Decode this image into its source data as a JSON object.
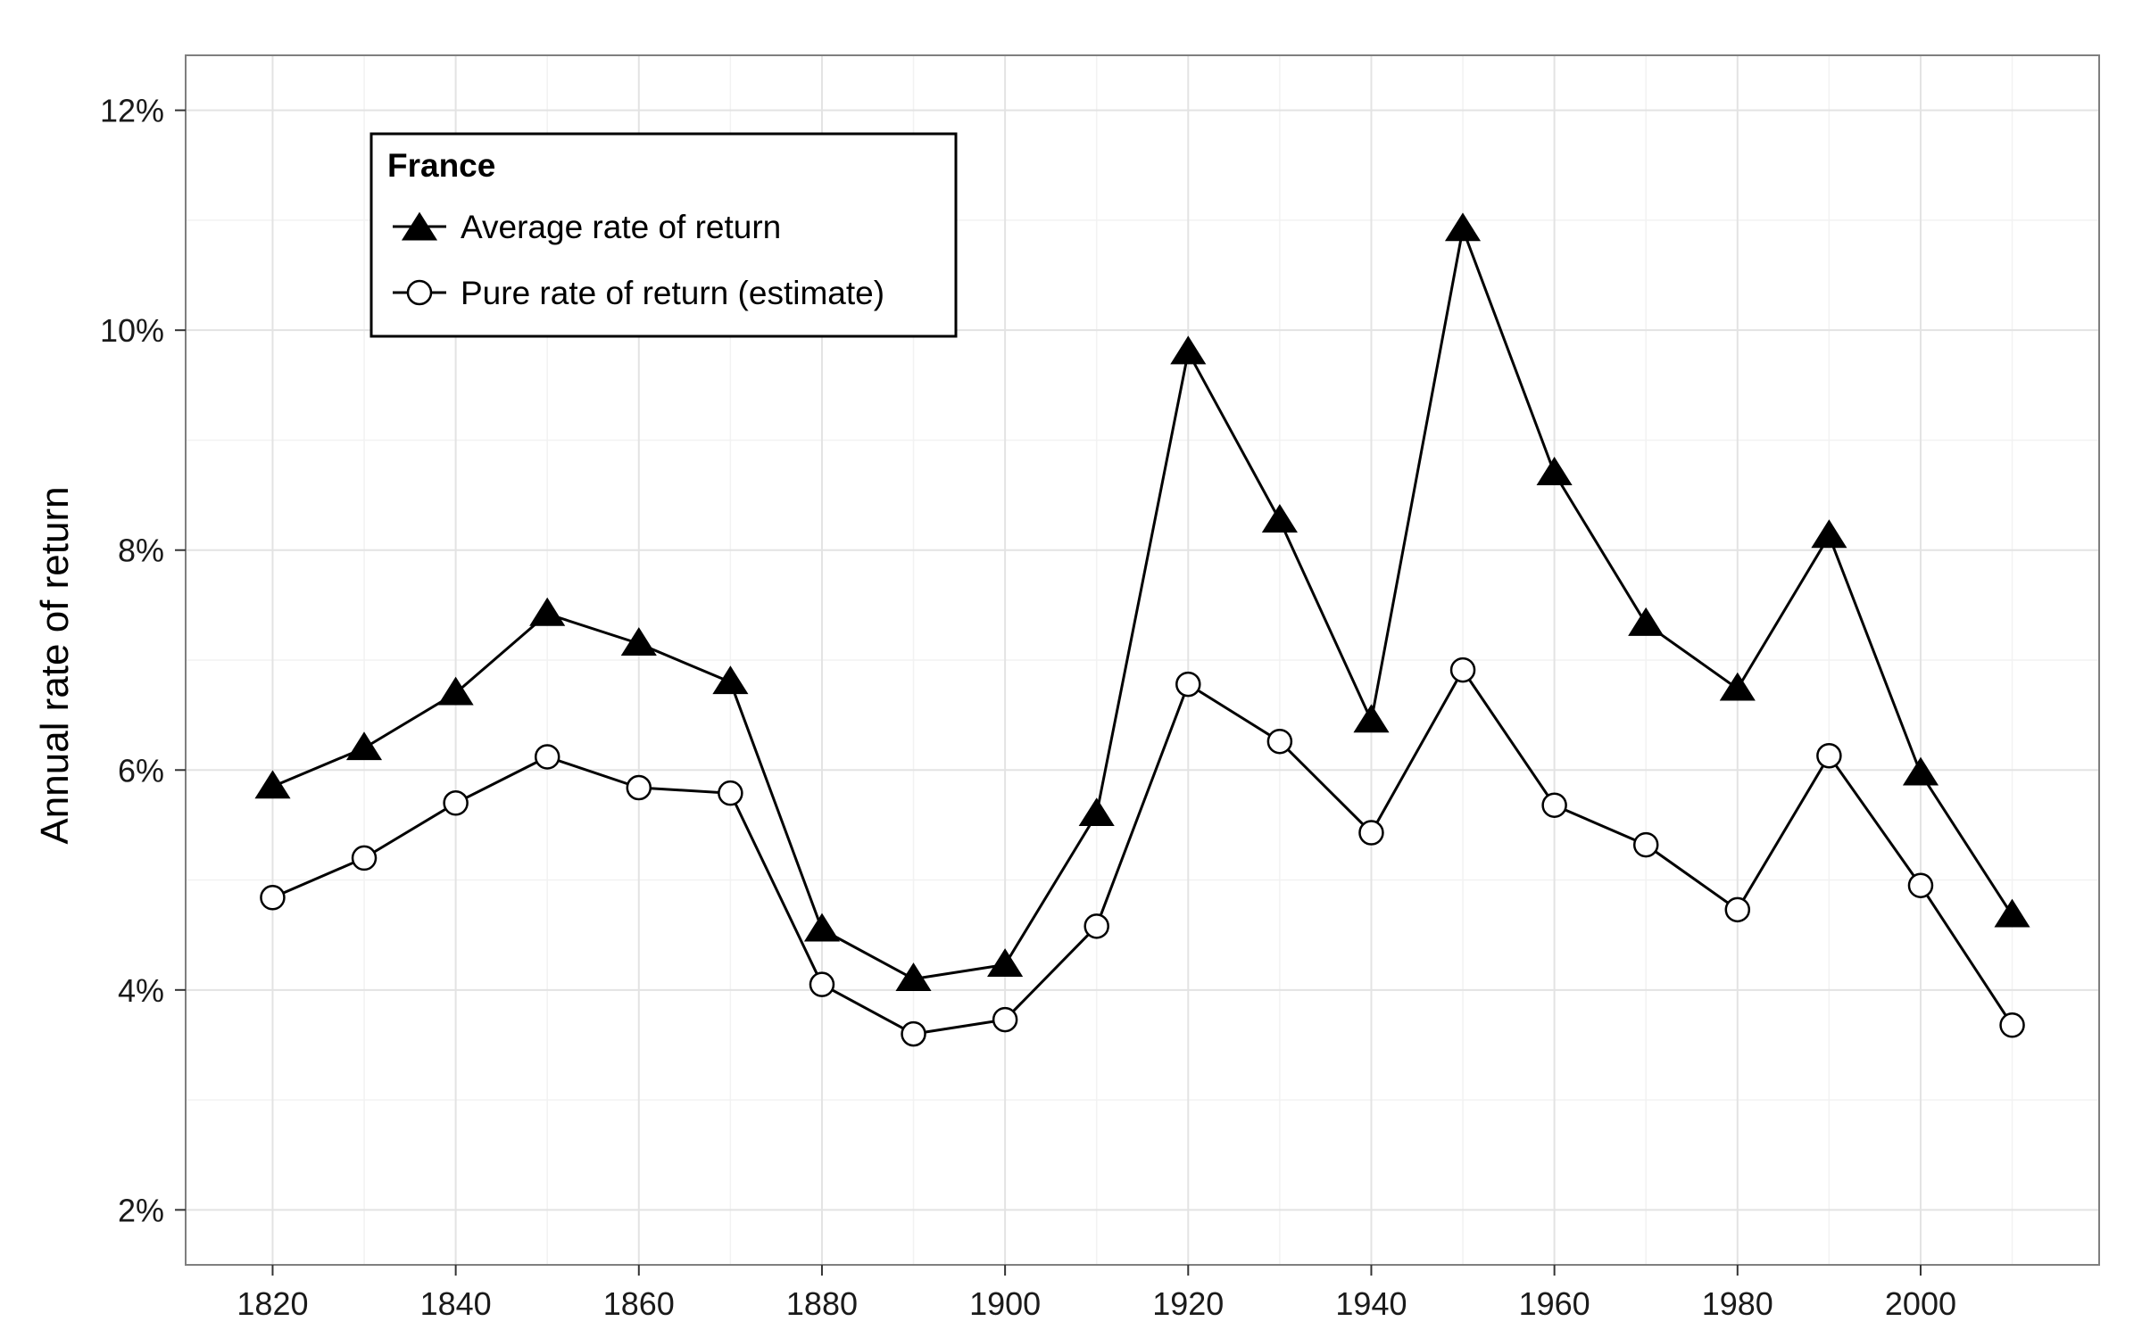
{
  "chart_data": {
    "type": "line",
    "title": "",
    "xlabel": "",
    "ylabel": "Annual rate of return",
    "x": [
      1820,
      1830,
      1840,
      1850,
      1860,
      1870,
      1880,
      1890,
      1900,
      1910,
      1920,
      1930,
      1940,
      1950,
      1960,
      1970,
      1980,
      1990,
      2000,
      2010
    ],
    "xlim": [
      1810.5,
      2019.5
    ],
    "ylim": [
      1.5,
      12.5
    ],
    "x_ticks": [
      1820,
      1840,
      1860,
      1880,
      1900,
      1920,
      1940,
      1960,
      1980,
      2000
    ],
    "y_ticks": [
      2,
      4,
      6,
      8,
      10,
      12
    ],
    "y_tick_labels": [
      "2%",
      "4%",
      "6%",
      "8%",
      "10%",
      "12%"
    ],
    "grid": true,
    "legend": {
      "title": "France",
      "position": "top-left"
    },
    "series": [
      {
        "name": "Average rate of return",
        "marker": "filled-triangle",
        "values": [
          5.85,
          6.2,
          6.7,
          7.42,
          7.15,
          6.8,
          4.55,
          4.1,
          4.23,
          5.6,
          9.8,
          8.27,
          6.45,
          10.92,
          8.7,
          7.33,
          6.74,
          8.13,
          5.97,
          4.68
        ]
      },
      {
        "name": "Pure rate of return (estimate)",
        "marker": "open-circle",
        "values": [
          4.84,
          5.2,
          5.7,
          6.12,
          5.84,
          5.79,
          4.05,
          3.6,
          3.73,
          4.58,
          6.78,
          6.26,
          5.43,
          6.91,
          5.68,
          5.32,
          4.73,
          6.13,
          4.95,
          3.68
        ]
      }
    ],
    "colors": {
      "line": "#000000",
      "grid_major": "#e3e3e3",
      "grid_minor": "#f2f2f2",
      "panel_border": "#7f7f7f"
    }
  }
}
